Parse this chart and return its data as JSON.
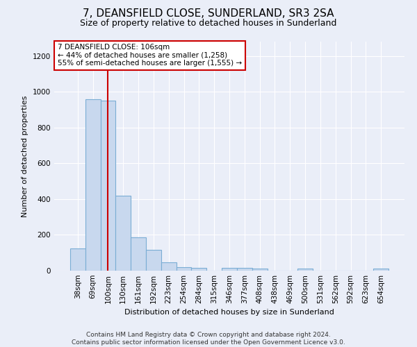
{
  "title": "7, DEANSFIELD CLOSE, SUNDERLAND, SR3 2SA",
  "subtitle": "Size of property relative to detached houses in Sunderland",
  "xlabel": "Distribution of detached houses by size in Sunderland",
  "ylabel": "Number of detached properties",
  "categories": [
    "38sqm",
    "69sqm",
    "100sqm",
    "130sqm",
    "161sqm",
    "192sqm",
    "223sqm",
    "254sqm",
    "284sqm",
    "315sqm",
    "346sqm",
    "377sqm",
    "408sqm",
    "438sqm",
    "469sqm",
    "500sqm",
    "531sqm",
    "562sqm",
    "592sqm",
    "623sqm",
    "654sqm"
  ],
  "values": [
    125,
    960,
    950,
    420,
    185,
    115,
    45,
    20,
    15,
    0,
    15,
    15,
    10,
    0,
    0,
    10,
    0,
    0,
    0,
    0,
    10
  ],
  "bar_color": "#c8d8ee",
  "bar_edge_color": "#7aadd4",
  "vline_x": 2,
  "vline_color": "#cc0000",
  "annotation_text": "7 DEANSFIELD CLOSE: 106sqm\n← 44% of detached houses are smaller (1,258)\n55% of semi-detached houses are larger (1,555) →",
  "annotation_box_color": "#ffffff",
  "annotation_box_edge": "#cc0000",
  "ylim": [
    0,
    1280
  ],
  "yticks": [
    0,
    200,
    400,
    600,
    800,
    1000,
    1200
  ],
  "footer": "Contains HM Land Registry data © Crown copyright and database right 2024.\nContains public sector information licensed under the Open Government Licence v3.0.",
  "bg_color": "#eaeef8",
  "plot_bg_color": "#eaeef8",
  "title_fontsize": 11,
  "subtitle_fontsize": 9,
  "ylabel_fontsize": 8,
  "xlabel_fontsize": 8,
  "tick_fontsize": 7.5,
  "footer_fontsize": 6.5
}
